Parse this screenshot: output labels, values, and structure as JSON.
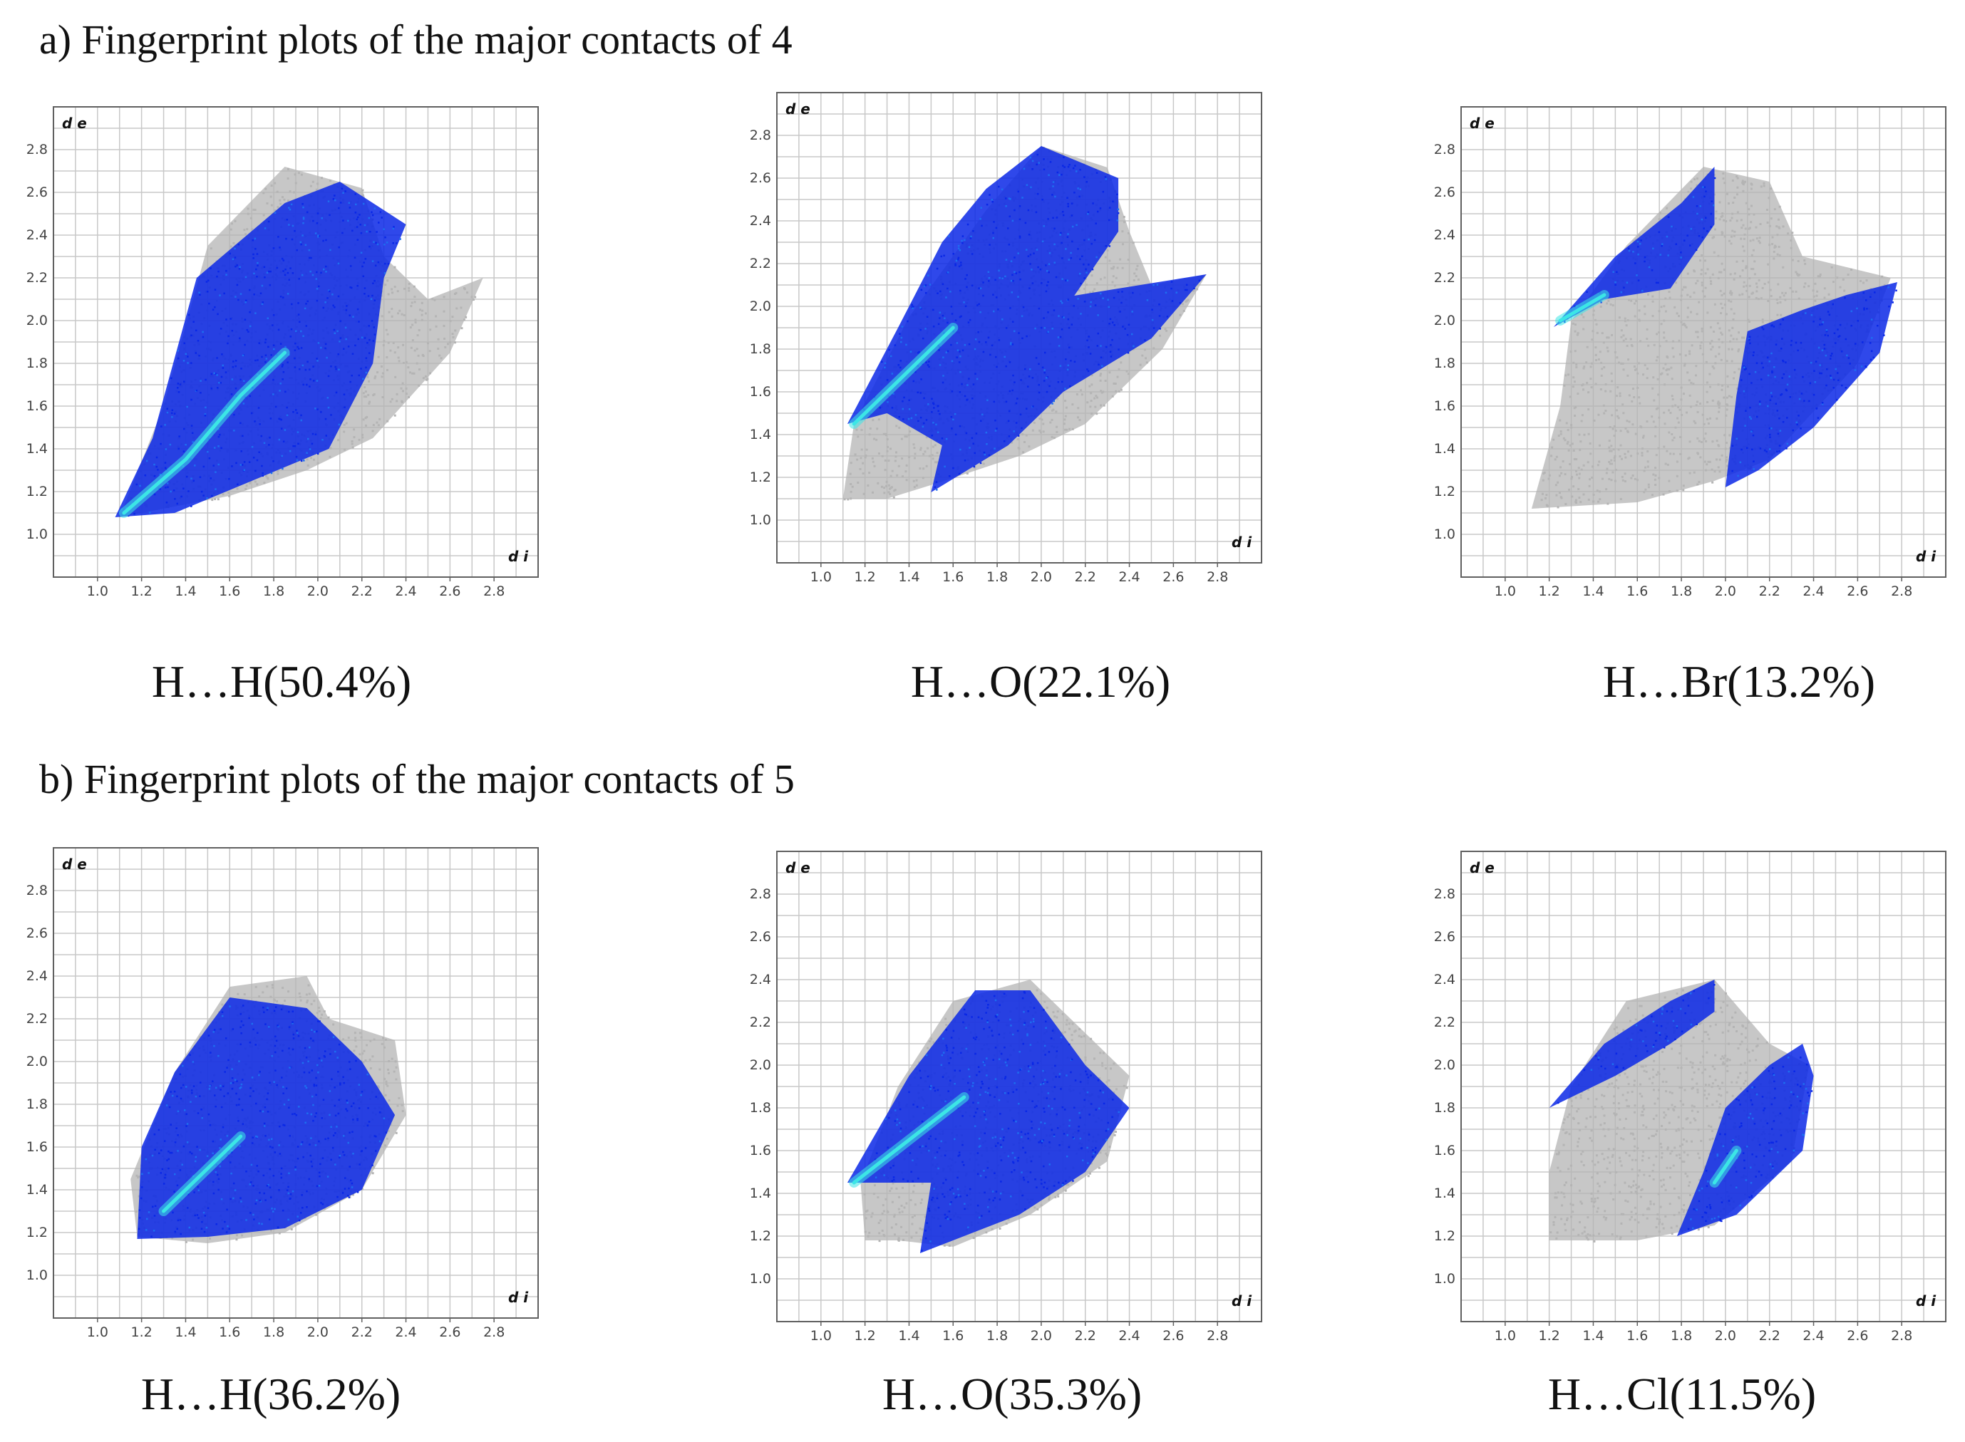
{
  "sections": [
    {
      "title": "a) Fingerprint plots of the major contacts of 4"
    },
    {
      "title": "b) Fingerprint plots of the major contacts of 5"
    }
  ],
  "colors": {
    "grey": "#b4b4b4",
    "blue": "#0a28e6",
    "blue_mid": "#1e6ef0",
    "cyan": "#3ce6e6",
    "grid": "#c8c8c8",
    "frame": "#606060"
  },
  "chart_data": [
    {
      "type": "scatter",
      "title": "H…H(50.4%)",
      "xlabel": "d i",
      "ylabel": "d e",
      "xlim": [
        0.8,
        3.0
      ],
      "ylim": [
        0.8,
        3.0
      ],
      "x_ticks": [
        "1.0",
        "1.2",
        "1.4",
        "1.6",
        "1.8",
        "2.0",
        "2.2",
        "2.4",
        "2.6",
        "2.8"
      ],
      "y_ticks": [
        "1.0",
        "1.2",
        "1.4",
        "1.6",
        "1.8",
        "2.0",
        "2.2",
        "2.4",
        "2.6",
        "2.8"
      ],
      "grey_region": [
        [
          1.1,
          1.08
        ],
        [
          1.3,
          1.6
        ],
        [
          1.5,
          2.35
        ],
        [
          1.85,
          2.72
        ],
        [
          2.2,
          2.62
        ],
        [
          2.3,
          2.3
        ],
        [
          2.5,
          2.1
        ],
        [
          2.75,
          2.2
        ],
        [
          2.6,
          1.85
        ],
        [
          2.25,
          1.45
        ],
        [
          1.95,
          1.3
        ],
        [
          1.6,
          1.18
        ]
      ],
      "blue_regions": [
        [
          [
            1.08,
            1.08
          ],
          [
            1.25,
            1.45
          ],
          [
            1.45,
            2.2
          ],
          [
            1.85,
            2.55
          ],
          [
            2.1,
            2.65
          ],
          [
            2.4,
            2.45
          ],
          [
            2.3,
            2.2
          ],
          [
            2.25,
            1.8
          ],
          [
            2.05,
            1.4
          ],
          [
            1.7,
            1.25
          ],
          [
            1.35,
            1.1
          ]
        ]
      ],
      "cyan_spine": [
        [
          1.12,
          1.1
        ],
        [
          1.4,
          1.35
        ],
        [
          1.65,
          1.65
        ],
        [
          1.85,
          1.85
        ]
      ]
    },
    {
      "type": "scatter",
      "title": "H…O(22.1%)",
      "xlabel": "d i",
      "ylabel": "d e",
      "xlim": [
        0.8,
        3.0
      ],
      "ylim": [
        0.8,
        3.0
      ],
      "x_ticks": [
        "1.0",
        "1.2",
        "1.4",
        "1.6",
        "1.8",
        "2.0",
        "2.2",
        "2.4",
        "2.6",
        "2.8"
      ],
      "y_ticks": [
        "1.0",
        "1.2",
        "1.4",
        "1.6",
        "1.8",
        "2.0",
        "2.2",
        "2.4",
        "2.6",
        "2.8"
      ],
      "grey_region": [
        [
          1.1,
          1.1
        ],
        [
          1.15,
          1.45
        ],
        [
          1.4,
          1.95
        ],
        [
          1.75,
          2.45
        ],
        [
          2.0,
          2.75
        ],
        [
          2.3,
          2.65
        ],
        [
          2.4,
          2.35
        ],
        [
          2.5,
          2.1
        ],
        [
          2.75,
          2.15
        ],
        [
          2.55,
          1.8
        ],
        [
          2.2,
          1.45
        ],
        [
          1.9,
          1.3
        ],
        [
          1.55,
          1.18
        ],
        [
          1.3,
          1.1
        ]
      ],
      "blue_regions": [
        [
          [
            1.12,
            1.45
          ],
          [
            1.35,
            1.9
          ],
          [
            1.55,
            2.3
          ],
          [
            1.75,
            2.55
          ],
          [
            2.0,
            2.75
          ],
          [
            2.35,
            2.6
          ],
          [
            2.35,
            2.35
          ],
          [
            2.15,
            2.05
          ],
          [
            2.75,
            2.15
          ],
          [
            2.5,
            1.85
          ],
          [
            2.1,
            1.6
          ],
          [
            1.85,
            1.35
          ],
          [
            1.5,
            1.13
          ],
          [
            1.55,
            1.35
          ],
          [
            1.3,
            1.5
          ]
        ]
      ],
      "cyan_spine": [
        [
          1.15,
          1.45
        ],
        [
          1.4,
          1.7
        ],
        [
          1.6,
          1.9
        ]
      ]
    },
    {
      "type": "scatter",
      "title": "H…Br(13.2%)",
      "xlabel": "d i",
      "ylabel": "d e",
      "xlim": [
        0.8,
        3.0
      ],
      "ylim": [
        0.8,
        3.0
      ],
      "x_ticks": [
        "1.0",
        "1.2",
        "1.4",
        "1.6",
        "1.8",
        "2.0",
        "2.2",
        "2.4",
        "2.6",
        "2.8"
      ],
      "y_ticks": [
        "1.0",
        "1.2",
        "1.4",
        "1.6",
        "1.8",
        "2.0",
        "2.2",
        "2.4",
        "2.6",
        "2.8"
      ],
      "grey_region": [
        [
          1.12,
          1.12
        ],
        [
          1.25,
          1.6
        ],
        [
          1.3,
          2.0
        ],
        [
          1.55,
          2.35
        ],
        [
          1.9,
          2.72
        ],
        [
          2.2,
          2.65
        ],
        [
          2.35,
          2.3
        ],
        [
          2.75,
          2.2
        ],
        [
          2.6,
          1.8
        ],
        [
          2.2,
          1.35
        ],
        [
          1.95,
          1.25
        ],
        [
          1.6,
          1.15
        ]
      ],
      "blue_regions": [
        [
          [
            1.22,
            1.97
          ],
          [
            1.5,
            2.3
          ],
          [
            1.8,
            2.55
          ],
          [
            1.95,
            2.72
          ],
          [
            1.95,
            2.45
          ],
          [
            1.75,
            2.15
          ],
          [
            1.45,
            2.1
          ]
        ],
        [
          [
            2.0,
            1.22
          ],
          [
            2.05,
            1.65
          ],
          [
            2.1,
            1.95
          ],
          [
            2.35,
            2.05
          ],
          [
            2.55,
            2.12
          ],
          [
            2.78,
            2.18
          ],
          [
            2.7,
            1.85
          ],
          [
            2.4,
            1.5
          ],
          [
            2.15,
            1.3
          ]
        ]
      ],
      "cyan_spine": [
        [
          1.25,
          2.0
        ],
        [
          1.45,
          2.12
        ]
      ]
    },
    {
      "type": "scatter",
      "title": "H…H(36.2%)",
      "xlabel": "d i",
      "ylabel": "d e",
      "xlim": [
        0.8,
        3.0
      ],
      "ylim": [
        0.8,
        3.0
      ],
      "x_ticks": [
        "1.0",
        "1.2",
        "1.4",
        "1.6",
        "1.8",
        "2.0",
        "2.2",
        "2.4",
        "2.6",
        "2.8"
      ],
      "y_ticks": [
        "1.0",
        "1.2",
        "1.4",
        "1.6",
        "1.8",
        "2.0",
        "2.2",
        "2.4",
        "2.6",
        "2.8"
      ],
      "grey_region": [
        [
          1.18,
          1.18
        ],
        [
          1.15,
          1.45
        ],
        [
          1.35,
          1.95
        ],
        [
          1.6,
          2.35
        ],
        [
          1.95,
          2.4
        ],
        [
          2.05,
          2.2
        ],
        [
          2.35,
          2.1
        ],
        [
          2.4,
          1.75
        ],
        [
          2.2,
          1.4
        ],
        [
          1.85,
          1.2
        ],
        [
          1.5,
          1.15
        ]
      ],
      "blue_regions": [
        [
          [
            1.18,
            1.17
          ],
          [
            1.2,
            1.6
          ],
          [
            1.35,
            1.95
          ],
          [
            1.6,
            2.3
          ],
          [
            1.95,
            2.25
          ],
          [
            2.2,
            2.0
          ],
          [
            2.35,
            1.75
          ],
          [
            2.2,
            1.4
          ],
          [
            1.85,
            1.22
          ],
          [
            1.5,
            1.18
          ]
        ]
      ],
      "cyan_spine": [
        [
          1.3,
          1.3
        ],
        [
          1.5,
          1.5
        ],
        [
          1.65,
          1.65
        ]
      ]
    },
    {
      "type": "scatter",
      "title": "H…O(35.3%)",
      "xlabel": "d i",
      "ylabel": "d e",
      "xlim": [
        0.8,
        3.0
      ],
      "ylim": [
        0.8,
        3.0
      ],
      "x_ticks": [
        "1.0",
        "1.2",
        "1.4",
        "1.6",
        "1.8",
        "2.0",
        "2.2",
        "2.4",
        "2.6",
        "2.8"
      ],
      "y_ticks": [
        "1.0",
        "1.2",
        "1.4",
        "1.6",
        "1.8",
        "2.0",
        "2.2",
        "2.4",
        "2.6",
        "2.8"
      ],
      "grey_region": [
        [
          1.2,
          1.18
        ],
        [
          1.18,
          1.45
        ],
        [
          1.35,
          1.9
        ],
        [
          1.6,
          2.3
        ],
        [
          1.95,
          2.4
        ],
        [
          2.2,
          2.15
        ],
        [
          2.4,
          1.95
        ],
        [
          2.3,
          1.55
        ],
        [
          1.95,
          1.3
        ],
        [
          1.6,
          1.15
        ],
        [
          1.35,
          1.18
        ]
      ],
      "blue_regions": [
        [
          [
            1.12,
            1.45
          ],
          [
            1.4,
            1.95
          ],
          [
            1.7,
            2.35
          ],
          [
            1.95,
            2.35
          ],
          [
            2.2,
            2.0
          ],
          [
            2.4,
            1.8
          ],
          [
            2.2,
            1.5
          ],
          [
            1.9,
            1.3
          ],
          [
            1.45,
            1.12
          ],
          [
            1.5,
            1.45
          ],
          [
            1.35,
            1.45
          ]
        ]
      ],
      "cyan_spine": [
        [
          1.15,
          1.45
        ],
        [
          1.4,
          1.65
        ],
        [
          1.65,
          1.85
        ]
      ]
    },
    {
      "type": "scatter",
      "title": "H…Cl(11.5%)",
      "xlabel": "d i",
      "ylabel": "d e",
      "xlim": [
        0.8,
        3.0
      ],
      "ylim": [
        0.8,
        3.0
      ],
      "x_ticks": [
        "1.0",
        "1.2",
        "1.4",
        "1.6",
        "1.8",
        "2.0",
        "2.2",
        "2.4",
        "2.6",
        "2.8"
      ],
      "y_ticks": [
        "1.0",
        "1.2",
        "1.4",
        "1.6",
        "1.8",
        "2.0",
        "2.2",
        "2.4",
        "2.6",
        "2.8"
      ],
      "grey_region": [
        [
          1.2,
          1.18
        ],
        [
          1.2,
          1.5
        ],
        [
          1.3,
          1.9
        ],
        [
          1.55,
          2.3
        ],
        [
          1.95,
          2.4
        ],
        [
          2.2,
          2.1
        ],
        [
          2.38,
          2.0
        ],
        [
          2.3,
          1.55
        ],
        [
          1.95,
          1.25
        ],
        [
          1.6,
          1.18
        ]
      ],
      "blue_regions": [
        [
          [
            1.2,
            1.8
          ],
          [
            1.45,
            2.1
          ],
          [
            1.75,
            2.3
          ],
          [
            1.95,
            2.4
          ],
          [
            1.95,
            2.25
          ],
          [
            1.75,
            2.1
          ],
          [
            1.5,
            1.95
          ]
        ],
        [
          [
            1.78,
            1.2
          ],
          [
            1.9,
            1.5
          ],
          [
            2.0,
            1.8
          ],
          [
            2.2,
            2.0
          ],
          [
            2.35,
            2.1
          ],
          [
            2.4,
            1.95
          ],
          [
            2.35,
            1.6
          ],
          [
            2.05,
            1.3
          ]
        ]
      ],
      "cyan_spine": [
        [
          1.95,
          1.45
        ],
        [
          2.05,
          1.6
        ]
      ]
    }
  ]
}
